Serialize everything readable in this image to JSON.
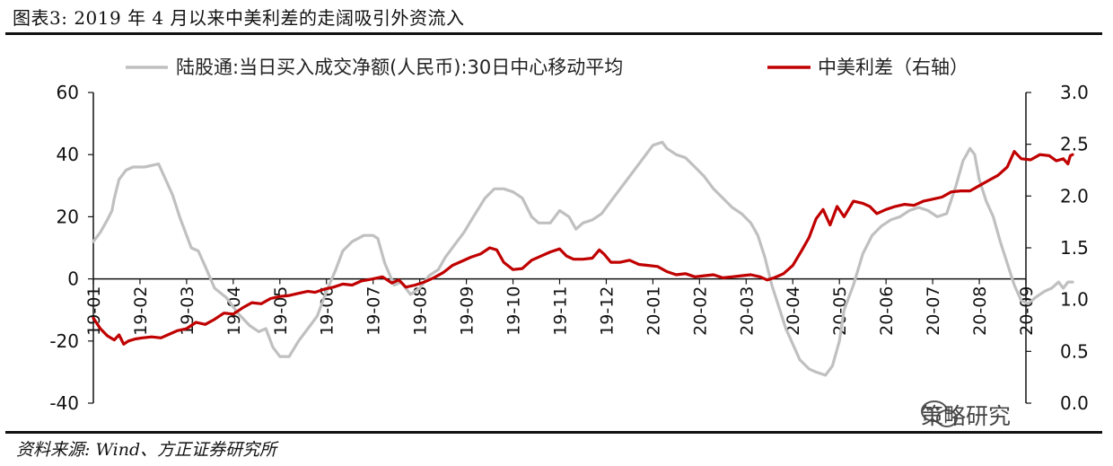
{
  "figure": {
    "title": "图表3:   2019 年 4 月以来中美利差的走阔吸引外资流入",
    "source": "资料来源: Wind、方正证券研究所",
    "watermark": "策略研究",
    "watermark_icon": "wechat-icon"
  },
  "colors": {
    "series_gray": "#c0c0c0",
    "series_red": "#c00000",
    "axis": "#111111"
  },
  "chart_data": {
    "type": "line",
    "legend_position": "top",
    "grid": false,
    "x_tick_labels": [
      "19-01",
      "19-02",
      "19-03",
      "19-04",
      "19-05",
      "19-06",
      "19-07",
      "19-08",
      "19-09",
      "19-10",
      "19-11",
      "19-12",
      "20-01",
      "20-02",
      "20-03",
      "20-04",
      "20-05",
      "20-06",
      "20-07",
      "20-08",
      "20-09"
    ],
    "y_left": {
      "range": [
        -40,
        60
      ],
      "ticks": [
        "-40",
        "-20",
        "0",
        "20",
        "40",
        "60"
      ]
    },
    "y_right": {
      "range": [
        0.0,
        3.0
      ],
      "ticks": [
        "0.0",
        "0.5",
        "1.0",
        "1.5",
        "2.0",
        "2.5",
        "3.0"
      ]
    },
    "series": [
      {
        "name": "陆股通:当日买入成交净额(人民币):30日中心移动平均",
        "axis": "left",
        "points": [
          [
            0,
            12
          ],
          [
            0.15,
            15
          ],
          [
            0.3,
            19
          ],
          [
            0.4,
            22
          ],
          [
            0.45,
            26
          ],
          [
            0.55,
            32
          ],
          [
            0.7,
            35
          ],
          [
            0.85,
            36
          ],
          [
            1.1,
            36
          ],
          [
            1.4,
            37
          ],
          [
            1.55,
            32
          ],
          [
            1.7,
            27
          ],
          [
            1.85,
            20
          ],
          [
            2.0,
            14
          ],
          [
            2.1,
            10
          ],
          [
            2.25,
            9
          ],
          [
            2.4,
            4
          ],
          [
            2.6,
            -3
          ],
          [
            2.85,
            -6
          ],
          [
            3.1,
            -11
          ],
          [
            3.35,
            -15
          ],
          [
            3.55,
            -17
          ],
          [
            3.7,
            -16
          ],
          [
            3.85,
            -22
          ],
          [
            4.0,
            -25
          ],
          [
            4.2,
            -25
          ],
          [
            4.4,
            -20
          ],
          [
            4.6,
            -16
          ],
          [
            4.8,
            -12
          ],
          [
            5.0,
            -4
          ],
          [
            5.2,
            3
          ],
          [
            5.35,
            9
          ],
          [
            5.55,
            12
          ],
          [
            5.8,
            14
          ],
          [
            6.0,
            14
          ],
          [
            6.1,
            13
          ],
          [
            6.25,
            5
          ],
          [
            6.45,
            -2
          ],
          [
            6.6,
            -1
          ],
          [
            6.8,
            -5
          ],
          [
            7.0,
            -3
          ],
          [
            7.2,
            1
          ],
          [
            7.4,
            3
          ],
          [
            7.55,
            7
          ],
          [
            7.75,
            11
          ],
          [
            7.95,
            15
          ],
          [
            8.15,
            20
          ],
          [
            8.4,
            26
          ],
          [
            8.6,
            29
          ],
          [
            8.8,
            29
          ],
          [
            9.0,
            28
          ],
          [
            9.2,
            26
          ],
          [
            9.4,
            20
          ],
          [
            9.55,
            18
          ],
          [
            9.8,
            18
          ],
          [
            10.0,
            22
          ],
          [
            10.2,
            20
          ],
          [
            10.35,
            16
          ],
          [
            10.5,
            18
          ],
          [
            10.7,
            19
          ],
          [
            10.9,
            21
          ],
          [
            11.15,
            26
          ],
          [
            11.35,
            30
          ],
          [
            11.55,
            34
          ],
          [
            11.8,
            39
          ],
          [
            12.0,
            43
          ],
          [
            12.2,
            44
          ],
          [
            12.3,
            42
          ],
          [
            12.5,
            40
          ],
          [
            12.7,
            39
          ],
          [
            12.9,
            36
          ],
          [
            13.1,
            33
          ],
          [
            13.3,
            29
          ],
          [
            13.5,
            26
          ],
          [
            13.7,
            23
          ],
          [
            13.9,
            21
          ],
          [
            14.1,
            18
          ],
          [
            14.25,
            14
          ],
          [
            14.4,
            7
          ],
          [
            14.55,
            -2
          ],
          [
            14.7,
            -9
          ],
          [
            14.85,
            -16
          ],
          [
            15.0,
            -21
          ],
          [
            15.15,
            -26
          ],
          [
            15.35,
            -29
          ],
          [
            15.5,
            -30
          ],
          [
            15.7,
            -31
          ],
          [
            15.85,
            -28
          ],
          [
            16.0,
            -20
          ],
          [
            16.1,
            -10
          ],
          [
            16.3,
            -2
          ],
          [
            16.5,
            8
          ],
          [
            16.7,
            14
          ],
          [
            16.9,
            17
          ],
          [
            17.1,
            19
          ],
          [
            17.3,
            20
          ],
          [
            17.5,
            22
          ],
          [
            17.7,
            23
          ],
          [
            17.9,
            22
          ],
          [
            18.1,
            20
          ],
          [
            18.3,
            21
          ],
          [
            18.5,
            30
          ],
          [
            18.65,
            38
          ],
          [
            18.8,
            42
          ],
          [
            18.9,
            40
          ],
          [
            19.0,
            32
          ],
          [
            19.15,
            25
          ],
          [
            19.3,
            20
          ],
          [
            19.45,
            12
          ],
          [
            19.6,
            5
          ],
          [
            19.75,
            -2
          ],
          [
            19.9,
            -7
          ],
          [
            20.05,
            -8
          ],
          [
            20.2,
            -6
          ],
          [
            20.4,
            -4
          ],
          [
            20.55,
            -3
          ],
          [
            20.7,
            -1
          ],
          [
            20.8,
            -3
          ],
          [
            20.9,
            -1
          ],
          [
            21.0,
            -1
          ]
        ]
      },
      {
        "name": "中美利差（右轴）",
        "axis": "right",
        "points": [
          [
            0,
            0.82
          ],
          [
            0.15,
            0.72
          ],
          [
            0.3,
            0.65
          ],
          [
            0.45,
            0.61
          ],
          [
            0.55,
            0.66
          ],
          [
            0.65,
            0.57
          ],
          [
            0.75,
            0.6
          ],
          [
            0.9,
            0.62
          ],
          [
            1.05,
            0.63
          ],
          [
            1.25,
            0.64
          ],
          [
            1.45,
            0.63
          ],
          [
            1.6,
            0.66
          ],
          [
            1.8,
            0.7
          ],
          [
            2.0,
            0.72
          ],
          [
            2.2,
            0.78
          ],
          [
            2.4,
            0.76
          ],
          [
            2.6,
            0.81
          ],
          [
            2.8,
            0.87
          ],
          [
            3.0,
            0.86
          ],
          [
            3.2,
            0.92
          ],
          [
            3.4,
            0.97
          ],
          [
            3.6,
            0.96
          ],
          [
            3.8,
            1.01
          ],
          [
            4.0,
            1.03
          ],
          [
            4.2,
            1.04
          ],
          [
            4.4,
            1.06
          ],
          [
            4.6,
            1.08
          ],
          [
            4.75,
            1.07
          ],
          [
            4.95,
            1.1
          ],
          [
            5.15,
            1.12
          ],
          [
            5.35,
            1.15
          ],
          [
            5.55,
            1.14
          ],
          [
            5.75,
            1.18
          ],
          [
            6.0,
            1.2
          ],
          [
            6.2,
            1.22
          ],
          [
            6.4,
            1.16
          ],
          [
            6.55,
            1.19
          ],
          [
            6.7,
            1.12
          ],
          [
            6.9,
            1.14
          ],
          [
            7.1,
            1.17
          ],
          [
            7.3,
            1.21
          ],
          [
            7.5,
            1.26
          ],
          [
            7.7,
            1.33
          ],
          [
            7.9,
            1.37
          ],
          [
            8.1,
            1.41
          ],
          [
            8.3,
            1.44
          ],
          [
            8.5,
            1.5
          ],
          [
            8.65,
            1.48
          ],
          [
            8.8,
            1.36
          ],
          [
            9.0,
            1.29
          ],
          [
            9.2,
            1.3
          ],
          [
            9.4,
            1.38
          ],
          [
            9.6,
            1.42
          ],
          [
            9.8,
            1.46
          ],
          [
            10.0,
            1.49
          ],
          [
            10.15,
            1.42
          ],
          [
            10.3,
            1.39
          ],
          [
            10.5,
            1.39
          ],
          [
            10.7,
            1.4
          ],
          [
            10.85,
            1.48
          ],
          [
            10.95,
            1.44
          ],
          [
            11.1,
            1.36
          ],
          [
            11.3,
            1.36
          ],
          [
            11.5,
            1.38
          ],
          [
            11.7,
            1.34
          ],
          [
            11.9,
            1.33
          ],
          [
            12.1,
            1.32
          ],
          [
            12.3,
            1.27
          ],
          [
            12.5,
            1.24
          ],
          [
            12.7,
            1.25
          ],
          [
            12.9,
            1.22
          ],
          [
            13.1,
            1.23
          ],
          [
            13.3,
            1.24
          ],
          [
            13.5,
            1.21
          ],
          [
            13.7,
            1.22
          ],
          [
            13.9,
            1.23
          ],
          [
            14.1,
            1.24
          ],
          [
            14.3,
            1.22
          ],
          [
            14.45,
            1.19
          ],
          [
            14.6,
            1.21
          ],
          [
            14.8,
            1.25
          ],
          [
            15.0,
            1.33
          ],
          [
            15.2,
            1.48
          ],
          [
            15.35,
            1.6
          ],
          [
            15.5,
            1.78
          ],
          [
            15.65,
            1.87
          ],
          [
            15.8,
            1.72
          ],
          [
            15.95,
            1.9
          ],
          [
            16.1,
            1.8
          ],
          [
            16.3,
            1.95
          ],
          [
            16.5,
            1.93
          ],
          [
            16.65,
            1.9
          ],
          [
            16.8,
            1.83
          ],
          [
            17.0,
            1.87
          ],
          [
            17.2,
            1.9
          ],
          [
            17.4,
            1.92
          ],
          [
            17.6,
            1.91
          ],
          [
            17.8,
            1.95
          ],
          [
            18.0,
            1.97
          ],
          [
            18.2,
            1.99
          ],
          [
            18.4,
            2.04
          ],
          [
            18.6,
            2.05
          ],
          [
            18.8,
            2.05
          ],
          [
            19.0,
            2.1
          ],
          [
            19.2,
            2.15
          ],
          [
            19.4,
            2.2
          ],
          [
            19.6,
            2.28
          ],
          [
            19.75,
            2.43
          ],
          [
            19.9,
            2.36
          ],
          [
            20.1,
            2.35
          ],
          [
            20.3,
            2.4
          ],
          [
            20.5,
            2.39
          ],
          [
            20.65,
            2.34
          ],
          [
            20.8,
            2.36
          ],
          [
            20.9,
            2.31
          ],
          [
            20.95,
            2.39
          ],
          [
            21.0,
            2.4
          ]
        ]
      }
    ]
  }
}
